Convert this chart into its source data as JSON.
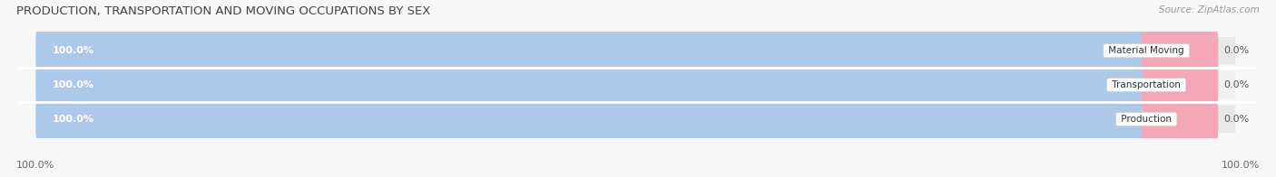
{
  "title": "PRODUCTION, TRANSPORTATION AND MOVING OCCUPATIONS BY SEX",
  "source": "Source: ZipAtlas.com",
  "categories": [
    "Production",
    "Transportation",
    "Material Moving"
  ],
  "male_values": [
    100.0,
    100.0,
    100.0
  ],
  "female_values": [
    0.0,
    0.0,
    0.0
  ],
  "male_color": "#adc9e9",
  "female_color": "#f4a7b9",
  "background_color": "#f7f7f7",
  "row_colors": [
    "#e8e8e8",
    "#f0f0f0",
    "#e8e8e8"
  ],
  "title_fontsize": 9.5,
  "source_fontsize": 7.5,
  "bar_label_fontsize": 8,
  "cat_label_fontsize": 7.5,
  "legend_fontsize": 8,
  "bar_height": 0.6,
  "female_display_pct": 6.0,
  "xlim_min": -2,
  "xlim_max": 110
}
